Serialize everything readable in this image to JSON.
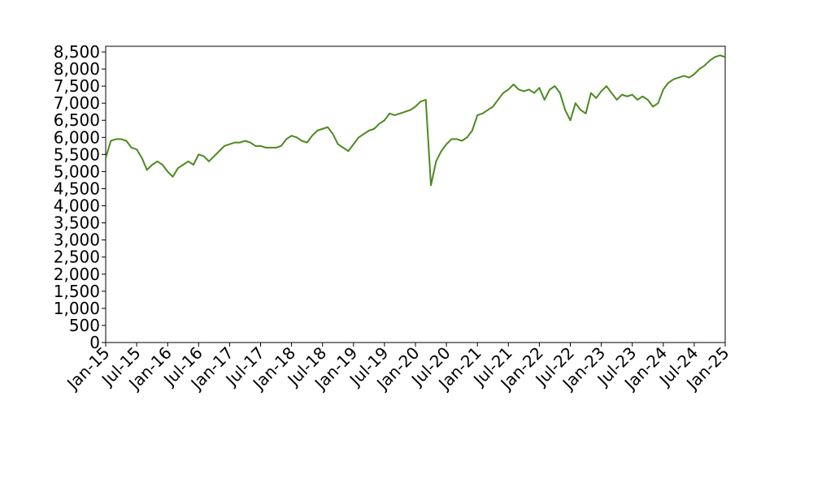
{
  "chart_data": {
    "type": "line",
    "x": [
      "2015-01",
      "2015-02",
      "2015-03",
      "2015-04",
      "2015-05",
      "2015-06",
      "2015-07",
      "2015-08",
      "2015-09",
      "2015-10",
      "2015-11",
      "2015-12",
      "2016-01",
      "2016-02",
      "2016-03",
      "2016-04",
      "2016-05",
      "2016-06",
      "2016-07",
      "2016-08",
      "2016-09",
      "2016-10",
      "2016-11",
      "2016-12",
      "2017-01",
      "2017-02",
      "2017-03",
      "2017-04",
      "2017-05",
      "2017-06",
      "2017-07",
      "2017-08",
      "2017-09",
      "2017-10",
      "2017-11",
      "2017-12",
      "2018-01",
      "2018-02",
      "2018-03",
      "2018-04",
      "2018-05",
      "2018-06",
      "2018-07",
      "2018-08",
      "2018-09",
      "2018-10",
      "2018-11",
      "2018-12",
      "2019-01",
      "2019-02",
      "2019-03",
      "2019-04",
      "2019-05",
      "2019-06",
      "2019-07",
      "2019-08",
      "2019-09",
      "2019-10",
      "2019-11",
      "2019-12",
      "2020-01",
      "2020-02",
      "2020-03",
      "2020-04",
      "2020-05",
      "2020-06",
      "2020-07",
      "2020-08",
      "2020-09",
      "2020-10",
      "2020-11",
      "2020-12",
      "2021-01",
      "2021-02",
      "2021-03",
      "2021-04",
      "2021-05",
      "2021-06",
      "2021-07",
      "2021-08",
      "2021-09",
      "2021-10",
      "2021-11",
      "2021-12",
      "2022-01",
      "2022-02",
      "2022-03",
      "2022-04",
      "2022-05",
      "2022-06",
      "2022-07",
      "2022-08",
      "2022-09",
      "2022-10",
      "2022-11",
      "2022-12",
      "2023-01",
      "2023-02",
      "2023-03",
      "2023-04",
      "2023-05",
      "2023-06",
      "2023-07",
      "2023-08",
      "2023-09",
      "2023-10",
      "2023-11",
      "2023-12",
      "2024-01",
      "2024-02",
      "2024-03",
      "2024-04",
      "2024-05",
      "2024-06",
      "2024-07",
      "2024-08",
      "2024-09",
      "2024-10",
      "2024-11",
      "2024-12",
      "2025-01"
    ],
    "series": [
      {
        "color": "#4b8a1e",
        "values": [
          5400,
          5900,
          5950,
          5950,
          5900,
          5700,
          5650,
          5400,
          5050,
          5200,
          5300,
          5200,
          5000,
          4850,
          5100,
          5200,
          5300,
          5200,
          5500,
          5450,
          5300,
          5450,
          5600,
          5750,
          5800,
          5850,
          5850,
          5900,
          5850,
          5750,
          5750,
          5700,
          5700,
          5700,
          5750,
          5950,
          6050,
          6000,
          5900,
          5850,
          6050,
          6200,
          6250,
          6300,
          6100,
          5800,
          5700,
          5600,
          5800,
          6000,
          6100,
          6200,
          6250,
          6400,
          6500,
          6700,
          6650,
          6700,
          6750,
          6800,
          6900,
          7050,
          7100,
          4600,
          5300,
          5600,
          5800,
          5950,
          5950,
          5900,
          6000,
          6200,
          6650,
          6700,
          6800,
          6900,
          7100,
          7300,
          7400,
          7550,
          7400,
          7350,
          7400,
          7300,
          7450,
          7100,
          7400,
          7500,
          7300,
          6800,
          6500,
          7000,
          6800,
          6700,
          7300,
          7150,
          7350,
          7500,
          7300,
          7100,
          7250,
          7200,
          7250,
          7100,
          7200,
          7100,
          6900,
          7000,
          7400,
          7600,
          7700,
          7750,
          7800,
          7750,
          7850,
          8000,
          8100,
          8250,
          8350,
          8400,
          8350
        ]
      }
    ],
    "xlim": [
      "2015-01",
      "2025-01"
    ],
    "xticks": [
      {
        "value": "2015-01",
        "label": "Jan-15"
      },
      {
        "value": "2015-07",
        "label": "Jul-15"
      },
      {
        "value": "2016-01",
        "label": "Jan-16"
      },
      {
        "value": "2016-07",
        "label": "Jul-16"
      },
      {
        "value": "2017-01",
        "label": "Jan-17"
      },
      {
        "value": "2017-07",
        "label": "Jul-17"
      },
      {
        "value": "2018-01",
        "label": "Jan-18"
      },
      {
        "value": "2018-07",
        "label": "Jul-18"
      },
      {
        "value": "2019-01",
        "label": "Jan-19"
      },
      {
        "value": "2019-07",
        "label": "Jul-19"
      },
      {
        "value": "2020-01",
        "label": "Jan-20"
      },
      {
        "value": "2020-07",
        "label": "Jul-20"
      },
      {
        "value": "2021-01",
        "label": "Jan-21"
      },
      {
        "value": "2021-07",
        "label": "Jul-21"
      },
      {
        "value": "2022-01",
        "label": "Jan-22"
      },
      {
        "value": "2022-07",
        "label": "Jul-22"
      },
      {
        "value": "2023-01",
        "label": "Jan-23"
      },
      {
        "value": "2023-07",
        "label": "Jul-23"
      },
      {
        "value": "2024-01",
        "label": "Jan-24"
      },
      {
        "value": "2024-07",
        "label": "Jul-24"
      },
      {
        "value": "2025-01",
        "label": "Jan-25"
      }
    ],
    "ylim": [
      0,
      8500
    ],
    "yticks": [
      0,
      500,
      {
        "value": 1000,
        "label": "1,000"
      },
      {
        "value": 1500,
        "label": "1,500"
      },
      {
        "value": 2000,
        "label": "2,000"
      },
      {
        "value": 2500,
        "label": "2,500"
      },
      {
        "value": 3000,
        "label": "3,000"
      },
      {
        "value": 3500,
        "label": "3,500"
      },
      {
        "value": 4000,
        "label": "4,000"
      },
      {
        "value": 4500,
        "label": "4,500"
      },
      {
        "value": 5000,
        "label": "5,000"
      },
      {
        "value": 5500,
        "label": "5,500"
      },
      {
        "value": 6000,
        "label": "6,000"
      },
      {
        "value": 6500,
        "label": "6,500"
      },
      {
        "value": 7000,
        "label": "7,000"
      },
      {
        "value": 7500,
        "label": "7,500"
      },
      {
        "value": 8000,
        "label": "8,000"
      },
      {
        "value": 8500,
        "label": "8,500"
      }
    ],
    "grid": false
  }
}
